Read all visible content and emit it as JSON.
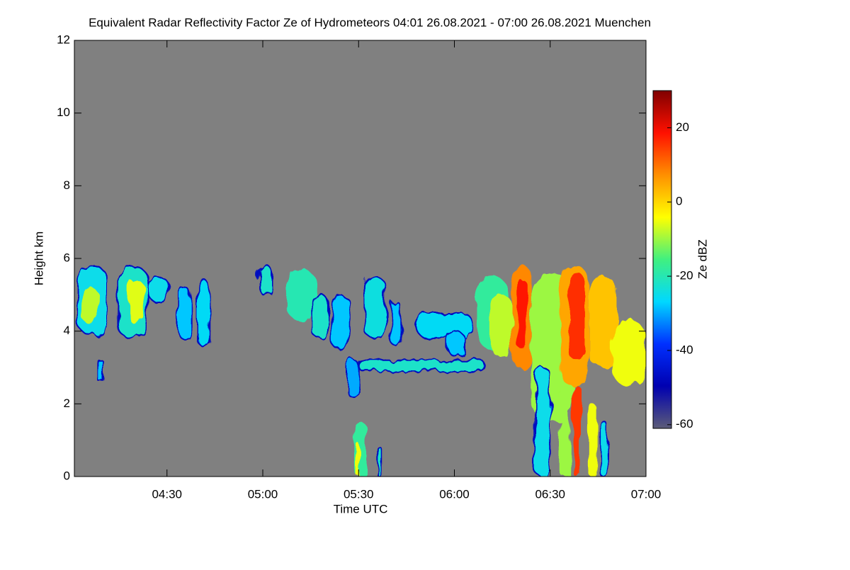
{
  "chart_data": {
    "type": "heatmap",
    "title": "Equivalent Radar Reflectivity Factor Ze of Hydrometeors   04:01 26.08.2021 - 07:00 26.08.2021 Muenchen",
    "xlabel": "Time UTC",
    "ylabel": "Height km",
    "colorbar_label": "Ze dBZ",
    "xlim": [
      4.0167,
      7.0
    ],
    "xticks": [
      {
        "value": 4.5,
        "label": "04:30"
      },
      {
        "value": 5.0,
        "label": "05:00"
      },
      {
        "value": 5.5,
        "label": "05:30"
      },
      {
        "value": 6.0,
        "label": "06:00"
      },
      {
        "value": 6.5,
        "label": "06:30"
      },
      {
        "value": 7.0,
        "label": "07:00"
      }
    ],
    "ylim": [
      0,
      12
    ],
    "yticks": [
      0,
      2,
      4,
      6,
      8,
      10,
      12
    ],
    "clim": [
      -61,
      30
    ],
    "cticks": [
      -60,
      -40,
      -20,
      0,
      20
    ],
    "colormap": [
      "#5c5c78",
      "#0000b0",
      "#0030ff",
      "#00d8ff",
      "#40f080",
      "#ffff00",
      "#ff9000",
      "#ff1000",
      "#800000"
    ],
    "background": "#808080",
    "echoes": [
      {
        "t": [
          4.03,
          4.19
        ],
        "h": [
          3.9,
          5.8
        ],
        "ze": -25
      },
      {
        "t": [
          4.06,
          4.14
        ],
        "h": [
          4.2,
          5.2
        ],
        "ze": -8
      },
      {
        "t": [
          4.14,
          4.17
        ],
        "h": [
          2.6,
          3.2
        ],
        "ze": -28
      },
      {
        "t": [
          4.24,
          4.4
        ],
        "h": [
          3.8,
          5.8
        ],
        "ze": -22
      },
      {
        "t": [
          4.3,
          4.38
        ],
        "h": [
          4.2,
          5.4
        ],
        "ze": -6
      },
      {
        "t": [
          4.4,
          4.51
        ],
        "h": [
          4.8,
          5.5
        ],
        "ze": -25
      },
      {
        "t": [
          4.56,
          4.62
        ],
        "h": [
          3.8,
          5.2
        ],
        "ze": -28
      },
      {
        "t": [
          4.66,
          4.72
        ],
        "h": [
          3.6,
          5.4
        ],
        "ze": -26
      },
      {
        "t": [
          4.98,
          5.05
        ],
        "h": [
          5.0,
          5.8
        ],
        "ze": -22
      },
      {
        "t": [
          5.12,
          5.28
        ],
        "h": [
          4.3,
          5.7
        ],
        "ze": -20
      },
      {
        "t": [
          5.26,
          5.34
        ],
        "h": [
          3.8,
          5.0
        ],
        "ze": -22
      },
      {
        "t": [
          5.36,
          5.45
        ],
        "h": [
          3.5,
          5.0
        ],
        "ze": -28
      },
      {
        "t": [
          5.44,
          5.5
        ],
        "h": [
          2.2,
          3.2
        ],
        "ze": -30
      },
      {
        "t": [
          5.5,
          6.16
        ],
        "h": [
          2.9,
          3.2
        ],
        "ze": -22
      },
      {
        "t": [
          5.53,
          5.64
        ],
        "h": [
          3.8,
          5.5
        ],
        "ze": -24
      },
      {
        "t": [
          5.67,
          5.72
        ],
        "h": [
          3.6,
          4.8
        ],
        "ze": -28
      },
      {
        "t": [
          5.8,
          6.1
        ],
        "h": [
          3.8,
          4.5
        ],
        "ze": -26
      },
      {
        "t": [
          5.97,
          6.05
        ],
        "h": [
          3.3,
          4.0
        ],
        "ze": -28
      },
      {
        "t": [
          5.48,
          5.54
        ],
        "h": [
          0,
          1.5
        ],
        "ze": -18
      },
      {
        "t": [
          5.49,
          5.51
        ],
        "h": [
          0,
          0.9
        ],
        "ze": -5
      },
      {
        "t": [
          5.6,
          5.62
        ],
        "h": [
          0,
          0.8
        ],
        "ze": -22
      },
      {
        "t": [
          6.12,
          6.28
        ],
        "h": [
          3.5,
          5.5
        ],
        "ze": -18
      },
      {
        "t": [
          6.19,
          6.3
        ],
        "h": [
          3.3,
          5.0
        ],
        "ze": -8
      },
      {
        "t": [
          6.4,
          6.62
        ],
        "h": [
          1.5,
          5.6
        ],
        "ze": -10
      },
      {
        "t": [
          6.3,
          6.4
        ],
        "h": [
          3.0,
          5.8
        ],
        "ze": 8
      },
      {
        "t": [
          6.33,
          6.38
        ],
        "h": [
          3.5,
          5.4
        ],
        "ze": 18
      },
      {
        "t": [
          6.55,
          6.7
        ],
        "h": [
          2.5,
          5.8
        ],
        "ze": 5
      },
      {
        "t": [
          6.6,
          6.68
        ],
        "h": [
          3.2,
          5.6
        ],
        "ze": 16
      },
      {
        "t": [
          6.7,
          6.85
        ],
        "h": [
          3.0,
          5.5
        ],
        "ze": 2
      },
      {
        "t": [
          6.82,
          7.0
        ],
        "h": [
          2.5,
          4.3
        ],
        "ze": -5
      },
      {
        "t": [
          6.42,
          6.5
        ],
        "h": [
          0,
          3.0
        ],
        "ze": -25
      },
      {
        "t": [
          6.55,
          6.6
        ],
        "h": [
          0,
          2.5
        ],
        "ze": -10
      },
      {
        "t": [
          6.62,
          6.66
        ],
        "h": [
          0,
          2.5
        ],
        "ze": 15
      },
      {
        "t": [
          6.7,
          6.74
        ],
        "h": [
          0,
          2.0
        ],
        "ze": -5
      },
      {
        "t": [
          6.76,
          6.8
        ],
        "h": [
          0,
          1.5
        ],
        "ze": -25
      }
    ]
  }
}
